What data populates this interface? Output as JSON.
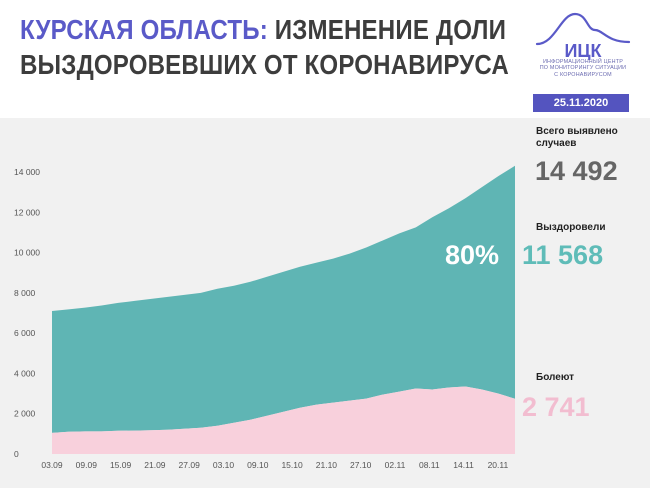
{
  "header": {
    "title_accent": "КУРСКАЯ ОБЛАСТЬ:",
    "title_line1_rest": " ИЗМЕНЕНИЕ ДОЛИ",
    "title_line2": "ВЫЗДОРОВЕВШИХ ОТ КОРОНАВИРУСА",
    "logo_name": "ИЦК",
    "logo_caption_1": "ИНФОРМАЦИОННЫЙ ЦЕНТР",
    "logo_caption_2": "ПО МОНИТОРИНГУ СИТУАЦИИ",
    "logo_caption_3": "С КОРОНАВИРУСОМ",
    "date": "25.11.2020",
    "logo_color": "#5a5ac8"
  },
  "kpis": {
    "total_label_1": "Всего выявлено",
    "total_label_2": "случаев",
    "total_value": "14 492",
    "recovered_label": "Выздоровели",
    "recovered_value": "11 568",
    "recovered_pct": "80%",
    "sick_label": "Болеют",
    "sick_value": "2 741"
  },
  "colors": {
    "recovered": "#5fb5b4",
    "sick": "#f8d0dc",
    "panel": "#f1f1f1",
    "accent": "#5a5ac8"
  },
  "chart_data": {
    "type": "area",
    "stacked": true,
    "title": "",
    "xlabel": "",
    "ylabel": "",
    "ylim": [
      0,
      14000
    ],
    "yticks": [
      0,
      2000,
      4000,
      6000,
      8000,
      10000,
      12000,
      14000
    ],
    "ytick_labels": [
      "0",
      "2 000",
      "4 000",
      "6 000",
      "8 000",
      "10 000",
      "12 000",
      "14 000"
    ],
    "xtick_labels": [
      "03.09",
      "09.09",
      "15.09",
      "21.09",
      "27.09",
      "03.10",
      "09.10",
      "15.10",
      "21.10",
      "27.10",
      "02.11",
      "08.11",
      "14.11",
      "20.11"
    ],
    "x": [
      "03.09",
      "06.09",
      "09.09",
      "12.09",
      "15.09",
      "18.09",
      "21.09",
      "24.09",
      "27.09",
      "30.09",
      "03.10",
      "06.10",
      "09.10",
      "12.10",
      "15.10",
      "18.10",
      "21.10",
      "24.10",
      "27.10",
      "30.10",
      "02.11",
      "05.11",
      "08.11",
      "11.11",
      "14.11",
      "17.11",
      "20.11",
      "23.11",
      "25.11"
    ],
    "series": [
      {
        "name": "Болеют",
        "values": [
          1050,
          1100,
          1120,
          1120,
          1150,
          1160,
          1180,
          1200,
          1250,
          1300,
          1400,
          1550,
          1700,
          1900,
          2100,
          2300,
          2450,
          2550,
          2650,
          2750,
          2950,
          3100,
          3250,
          3200,
          3300,
          3350,
          3200,
          3000,
          2741
        ]
      },
      {
        "name": "Выздоровели",
        "values": [
          6050,
          6080,
          6150,
          6250,
          6350,
          6440,
          6520,
          6600,
          6650,
          6700,
          6800,
          6800,
          6850,
          6900,
          6950,
          7000,
          7050,
          7150,
          7300,
          7500,
          7650,
          7850,
          8000,
          8550,
          8900,
          9350,
          10050,
          10800,
          11568
        ]
      }
    ],
    "total_cases": [
      7100,
      7180,
      7270,
      7370,
      7500,
      7600,
      7700,
      7800,
      7900,
      8000,
      8200,
      8350,
      8550,
      8800,
      9050,
      9300,
      9500,
      9700,
      9950,
      10250,
      10600,
      10950,
      11250,
      11750,
      12200,
      12700,
      13250,
      13800,
      14309
    ]
  }
}
